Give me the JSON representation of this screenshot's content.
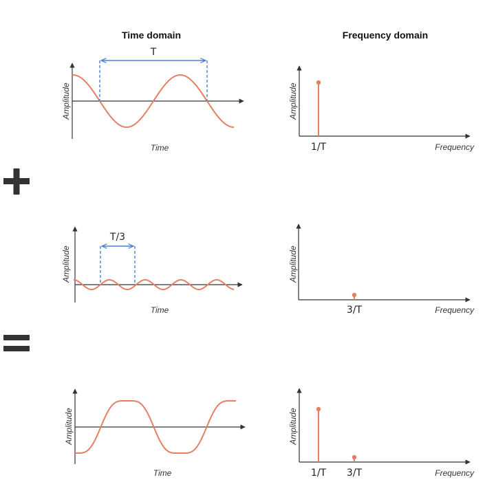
{
  "headers": {
    "time": "Time domain",
    "frequency": "Frequency domain"
  },
  "axis_labels": {
    "amplitude": "Amplitude",
    "time": "Time",
    "frequency": "Frequency"
  },
  "operators": [
    "plus-sign",
    "equals-sign"
  ],
  "colors": {
    "signal": "#e57f5f",
    "period_marker": "#4a7fd4",
    "axis": "#333333"
  },
  "rows": [
    {
      "period_label": "T",
      "spectrum_ticks": [
        "1/T"
      ],
      "spectrum": [
        {
          "frequency": "1/T",
          "amplitude": 1.0
        }
      ]
    },
    {
      "period_label": "T/3",
      "spectrum_ticks": [
        "3/T"
      ],
      "spectrum": [
        {
          "frequency": "3/T",
          "amplitude": 0.18
        }
      ]
    },
    {
      "period_label": "",
      "spectrum_ticks": [
        "1/T",
        "3/T"
      ],
      "spectrum": [
        {
          "frequency": "1/T",
          "amplitude": 1.0
        },
        {
          "frequency": "3/T",
          "amplitude": 0.18
        }
      ]
    }
  ]
}
